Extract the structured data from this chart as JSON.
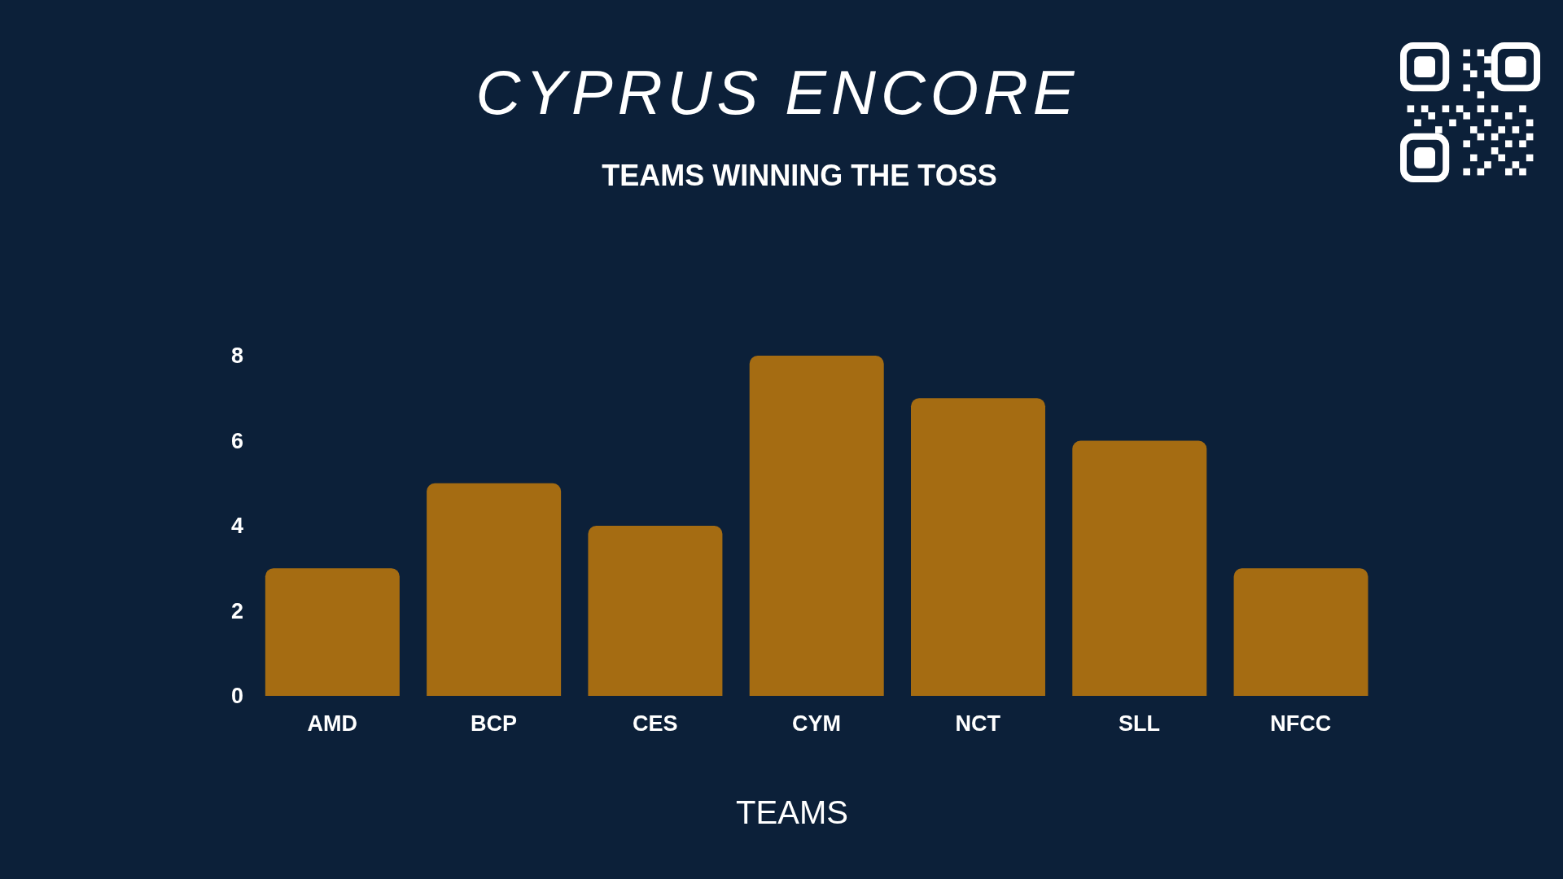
{
  "chart_data": {
    "type": "bar",
    "title": "CYPRUS ENCORE",
    "subtitle": "TEAMS WINNING THE TOSS",
    "xlabel": "TEAMS",
    "categories": [
      "AMD",
      "BCP",
      "CES",
      "CYM",
      "NCT",
      "SLL",
      "NFCC"
    ],
    "values": [
      3,
      5,
      4,
      8,
      7,
      6,
      3
    ],
    "color": "#a56c12",
    "ylim": [
      0,
      8
    ],
    "yticks": [
      0,
      2,
      4,
      6,
      8
    ]
  }
}
